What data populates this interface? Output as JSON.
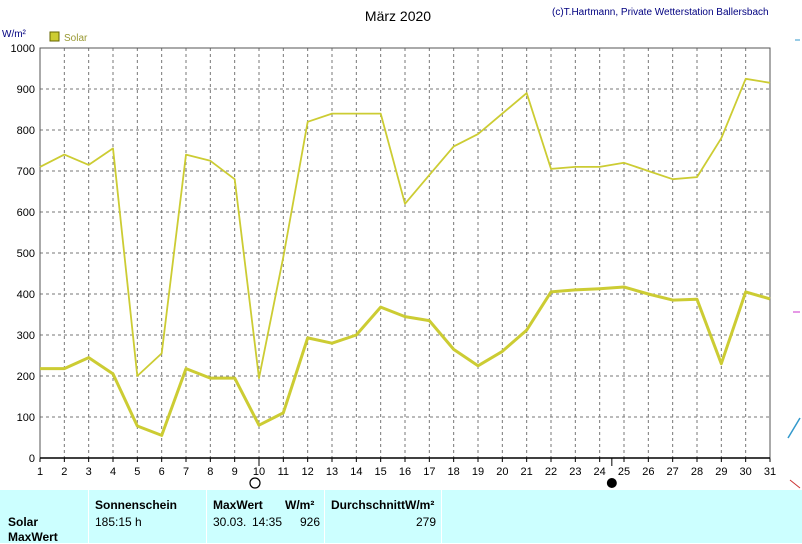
{
  "title": "März 2020",
  "copyright": "(c)T.Hartmann, Private Wetterstation Ballersbach",
  "y_unit": "W/m²",
  "legend": {
    "label": "Solar",
    "color": "#cccc33"
  },
  "markers": {
    "full_moon_day": 10,
    "new_moon_day": 24.5
  },
  "chart_data": {
    "type": "line",
    "title": "März 2020",
    "ylabel": "W/m²",
    "xlabel": "",
    "xlim": [
      1,
      31
    ],
    "ylim": [
      0,
      1000
    ],
    "grid": true,
    "legend_position": "top-left",
    "x_ticks": [
      1,
      2,
      3,
      4,
      5,
      6,
      7,
      8,
      9,
      10,
      11,
      12,
      13,
      14,
      15,
      16,
      17,
      18,
      19,
      20,
      21,
      22,
      23,
      24,
      25,
      26,
      27,
      28,
      29,
      30,
      31
    ],
    "y_ticks": [
      0,
      100,
      200,
      300,
      400,
      500,
      600,
      700,
      800,
      900,
      1000
    ],
    "series": [
      {
        "name": "Solar",
        "color": "#cccc33",
        "line": "thin",
        "x": [
          1,
          2,
          3,
          4,
          5,
          6,
          7,
          8,
          9,
          10,
          11,
          12,
          13,
          14,
          15,
          16,
          17,
          18,
          19,
          20,
          21,
          22,
          23,
          24,
          25,
          26,
          27,
          28,
          29,
          30,
          31
        ],
        "values": [
          710,
          740,
          715,
          755,
          200,
          255,
          740,
          725,
          680,
          195,
          490,
          820,
          840,
          840,
          840,
          620,
          690,
          760,
          790,
          840,
          890,
          705,
          710,
          710,
          720,
          700,
          680,
          685,
          780,
          925,
          915
        ]
      },
      {
        "name": "Solar",
        "color": "#cccc33",
        "line": "thick",
        "x": [
          1,
          2,
          3,
          4,
          5,
          6,
          7,
          8,
          9,
          10,
          11,
          12,
          13,
          14,
          15,
          16,
          17,
          18,
          19,
          20,
          21,
          22,
          23,
          24,
          25,
          26,
          27,
          28,
          29,
          30,
          31
        ],
        "values": [
          218,
          218,
          245,
          205,
          78,
          55,
          218,
          195,
          195,
          80,
          110,
          293,
          280,
          300,
          368,
          345,
          335,
          265,
          225,
          260,
          312,
          405,
          410,
          413,
          417,
          400,
          385,
          387,
          230,
          405,
          388
        ]
      }
    ]
  },
  "stats": {
    "row_solar": "Solar",
    "row_max": "MaxWert",
    "sonnenschein_header": "Sonnenschein",
    "sonnenschein_value": "185:15 h",
    "maxwert_header": "MaxWert",
    "maxwert_unit": "W/m²",
    "maxwert_date": "30.03.",
    "maxwert_time": "14:35",
    "maxwert_value": "926",
    "avg_header": "DurchschnittW/m²",
    "avg_value": "279"
  }
}
